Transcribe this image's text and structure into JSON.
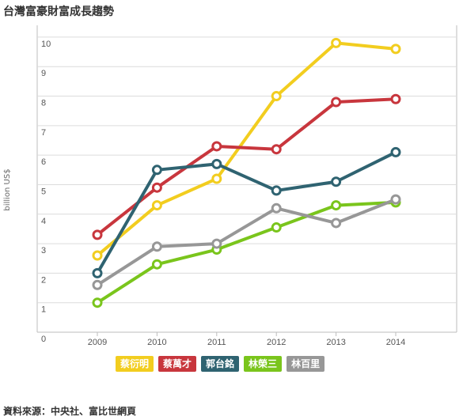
{
  "title": "台灣富豪財富成長趨勢",
  "source": "資料來源：中央社、富比世網頁",
  "chart_data": {
    "type": "line",
    "title": "台灣富豪財富成長趨勢",
    "xlabel": "",
    "ylabel": "billion US$",
    "x": [
      2009,
      2010,
      2011,
      2012,
      2013,
      2014
    ],
    "yticks": [
      0,
      1,
      2,
      3,
      4,
      5,
      6,
      7,
      8,
      9,
      10
    ],
    "ylim": [
      0,
      10.4
    ],
    "grid": "horizontal",
    "legend_placement": "bottom",
    "series": [
      {
        "name": "蔡衍明",
        "color": "#f2cd1f",
        "values": [
          2.6,
          4.3,
          5.2,
          8.0,
          9.8,
          9.6
        ]
      },
      {
        "name": "蔡萬才",
        "color": "#c8363d",
        "values": [
          3.3,
          4.9,
          6.3,
          6.2,
          7.8,
          7.9
        ]
      },
      {
        "name": "郭台銘",
        "color": "#2f6371",
        "values": [
          2.0,
          5.5,
          5.7,
          4.8,
          5.1,
          6.1
        ]
      },
      {
        "name": "林榮三",
        "color": "#7ac51c",
        "values": [
          1.0,
          2.3,
          2.8,
          3.55,
          4.3,
          4.4
        ]
      },
      {
        "name": "林百里",
        "color": "#979797",
        "values": [
          1.6,
          2.9,
          3.0,
          4.2,
          3.7,
          4.5
        ]
      }
    ]
  }
}
